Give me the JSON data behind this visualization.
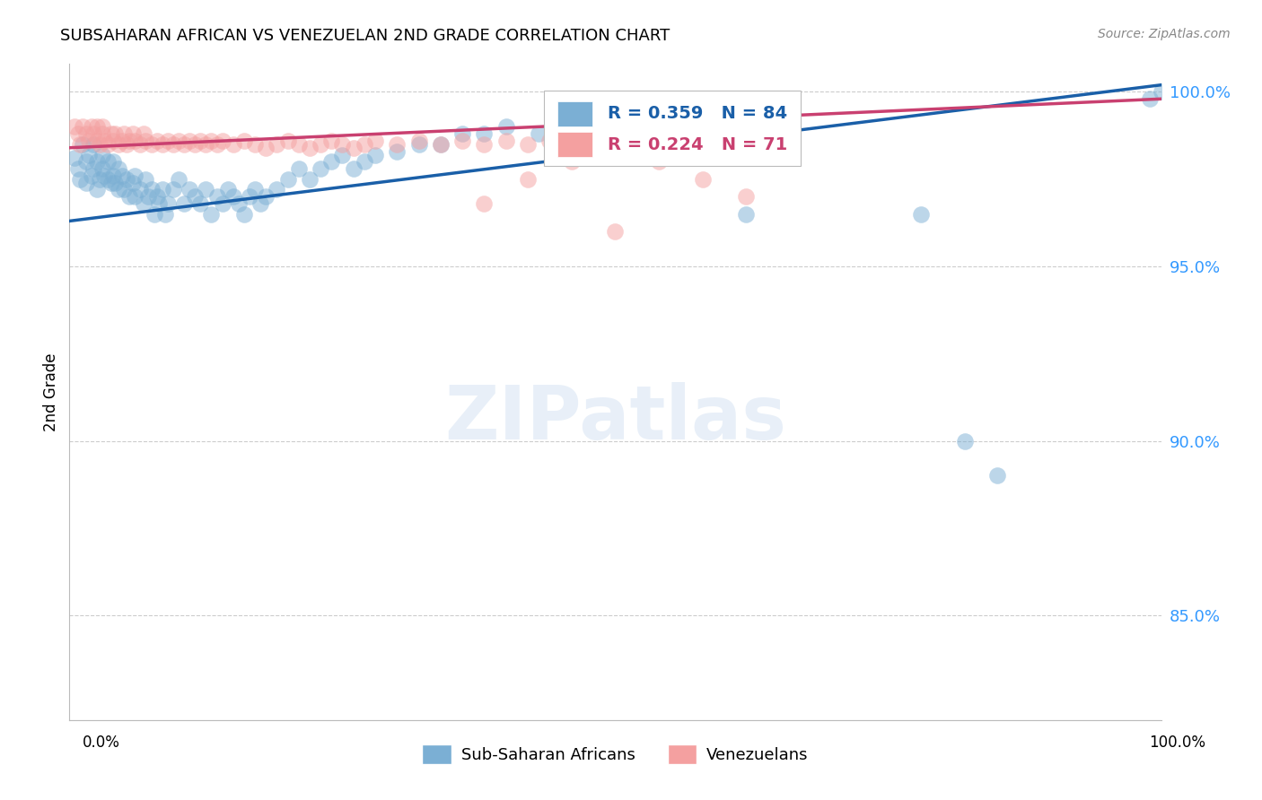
{
  "title": "SUBSAHARAN AFRICAN VS VENEZUELAN 2ND GRADE CORRELATION CHART",
  "source": "Source: ZipAtlas.com",
  "ylabel": "2nd Grade",
  "x_range": [
    0.0,
    1.0
  ],
  "y_range": [
    0.82,
    1.008
  ],
  "blue_R": 0.359,
  "blue_N": 84,
  "pink_R": 0.224,
  "pink_N": 71,
  "blue_color": "#7BAFD4",
  "pink_color": "#F4A0A0",
  "trend_blue": "#1a5fa8",
  "trend_pink": "#c94070",
  "legend_label_blue": "Sub-Saharan Africans",
  "legend_label_pink": "Venezuelans",
  "blue_scatter_x": [
    0.005,
    0.008,
    0.01,
    0.012,
    0.015,
    0.015,
    0.018,
    0.02,
    0.022,
    0.022,
    0.025,
    0.025,
    0.028,
    0.03,
    0.03,
    0.032,
    0.035,
    0.035,
    0.038,
    0.04,
    0.04,
    0.042,
    0.045,
    0.045,
    0.048,
    0.05,
    0.052,
    0.055,
    0.058,
    0.06,
    0.06,
    0.065,
    0.068,
    0.07,
    0.072,
    0.075,
    0.078,
    0.08,
    0.082,
    0.085,
    0.088,
    0.09,
    0.095,
    0.1,
    0.105,
    0.11,
    0.115,
    0.12,
    0.125,
    0.13,
    0.135,
    0.14,
    0.145,
    0.15,
    0.155,
    0.16,
    0.165,
    0.17,
    0.175,
    0.18,
    0.19,
    0.2,
    0.21,
    0.22,
    0.23,
    0.24,
    0.25,
    0.26,
    0.27,
    0.28,
    0.3,
    0.32,
    0.34,
    0.36,
    0.38,
    0.4,
    0.43,
    0.45,
    0.62,
    0.78,
    0.82,
    0.85,
    0.99,
    1.0
  ],
  "blue_scatter_y": [
    0.981,
    0.978,
    0.975,
    0.985,
    0.974,
    0.98,
    0.982,
    0.976,
    0.985,
    0.978,
    0.972,
    0.98,
    0.975,
    0.978,
    0.982,
    0.976,
    0.975,
    0.98,
    0.974,
    0.976,
    0.98,
    0.974,
    0.978,
    0.972,
    0.976,
    0.972,
    0.975,
    0.97,
    0.974,
    0.976,
    0.97,
    0.972,
    0.968,
    0.975,
    0.97,
    0.972,
    0.965,
    0.97,
    0.968,
    0.972,
    0.965,
    0.968,
    0.972,
    0.975,
    0.968,
    0.972,
    0.97,
    0.968,
    0.972,
    0.965,
    0.97,
    0.968,
    0.972,
    0.97,
    0.968,
    0.965,
    0.97,
    0.972,
    0.968,
    0.97,
    0.972,
    0.975,
    0.978,
    0.975,
    0.978,
    0.98,
    0.982,
    0.978,
    0.98,
    0.982,
    0.983,
    0.985,
    0.985,
    0.988,
    0.988,
    0.99,
    0.988,
    0.99,
    0.965,
    0.965,
    0.9,
    0.89,
    0.998,
    1.0
  ],
  "pink_scatter_x": [
    0.005,
    0.008,
    0.01,
    0.012,
    0.015,
    0.018,
    0.02,
    0.022,
    0.025,
    0.025,
    0.028,
    0.03,
    0.03,
    0.032,
    0.035,
    0.038,
    0.04,
    0.042,
    0.045,
    0.048,
    0.05,
    0.052,
    0.055,
    0.058,
    0.06,
    0.065,
    0.068,
    0.07,
    0.075,
    0.08,
    0.085,
    0.09,
    0.095,
    0.1,
    0.105,
    0.11,
    0.115,
    0.12,
    0.125,
    0.13,
    0.135,
    0.14,
    0.15,
    0.16,
    0.17,
    0.18,
    0.19,
    0.2,
    0.21,
    0.22,
    0.23,
    0.24,
    0.25,
    0.26,
    0.27,
    0.28,
    0.3,
    0.32,
    0.34,
    0.36,
    0.38,
    0.4,
    0.42,
    0.44,
    0.38,
    0.42,
    0.46,
    0.5,
    0.54,
    0.58,
    0.62
  ],
  "pink_scatter_y": [
    0.99,
    0.988,
    0.985,
    0.99,
    0.988,
    0.986,
    0.99,
    0.988,
    0.986,
    0.99,
    0.985,
    0.988,
    0.99,
    0.986,
    0.985,
    0.988,
    0.986,
    0.988,
    0.985,
    0.986,
    0.988,
    0.985,
    0.986,
    0.988,
    0.986,
    0.985,
    0.988,
    0.986,
    0.985,
    0.986,
    0.985,
    0.986,
    0.985,
    0.986,
    0.985,
    0.986,
    0.985,
    0.986,
    0.985,
    0.986,
    0.985,
    0.986,
    0.985,
    0.986,
    0.985,
    0.984,
    0.985,
    0.986,
    0.985,
    0.984,
    0.985,
    0.986,
    0.985,
    0.984,
    0.985,
    0.986,
    0.985,
    0.986,
    0.985,
    0.986,
    0.985,
    0.986,
    0.985,
    0.986,
    0.968,
    0.975,
    0.98,
    0.96,
    0.98,
    0.975,
    0.97
  ]
}
